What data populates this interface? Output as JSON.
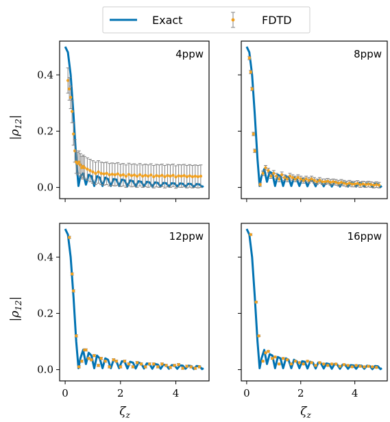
{
  "chart_data": {
    "type": "line",
    "layout": "2x2 grid, shared x and y axes",
    "legend": {
      "placement": "top-center",
      "entries": [
        {
          "name": "Exact",
          "style": "line",
          "color": "#0072b2"
        },
        {
          "name": "FDTD",
          "style": "points with error bars",
          "color": "#f0a020",
          "error_color": "#808080"
        }
      ]
    },
    "xlabel": "ζ",
    "xlabel_sub": "z",
    "ylabel": "|ρ",
    "ylabel_sub": "12",
    "ylabel_close": "|",
    "xlim": [
      -0.2,
      5.2
    ],
    "ylim": [
      -0.04,
      0.52
    ],
    "xticks": [
      0,
      2,
      4
    ],
    "yticks": [
      0.0,
      0.2,
      0.4
    ],
    "grid": false,
    "panels": [
      {
        "label": "4ppw",
        "exact": {
          "x": [
            0.0,
            0.1,
            0.2,
            0.3,
            0.4,
            0.48,
            0.55,
            0.65,
            0.75,
            0.85,
            0.95,
            1.05,
            1.15,
            1.25,
            1.35,
            1.45,
            1.55,
            1.65,
            1.75,
            1.85,
            1.95,
            2.05,
            2.15,
            2.25,
            2.35,
            2.45,
            2.55,
            2.65,
            2.75,
            2.85,
            2.95,
            3.05,
            3.15,
            3.25,
            3.35,
            3.45,
            3.55,
            3.65,
            3.75,
            3.85,
            3.95,
            4.05,
            4.15,
            4.25,
            4.35,
            4.45,
            4.55,
            4.65,
            4.75,
            4.85,
            4.95,
            5.0
          ],
          "y": [
            0.5,
            0.48,
            0.4,
            0.26,
            0.1,
            0.005,
            0.04,
            0.05,
            0.01,
            0.045,
            0.04,
            0.005,
            0.04,
            0.035,
            0.005,
            0.035,
            0.03,
            0.005,
            0.03,
            0.028,
            0.005,
            0.028,
            0.025,
            0.004,
            0.025,
            0.022,
            0.004,
            0.022,
            0.02,
            0.004,
            0.02,
            0.018,
            0.003,
            0.018,
            0.016,
            0.003,
            0.016,
            0.015,
            0.003,
            0.015,
            0.014,
            0.003,
            0.014,
            0.013,
            0.003,
            0.013,
            0.012,
            0.002,
            0.012,
            0.011,
            0.002,
            0.005
          ]
        },
        "fdtd": {
          "x": [
            0.1,
            0.15,
            0.2,
            0.25,
            0.3,
            0.35,
            0.4,
            0.45,
            0.5,
            0.55,
            0.6,
            0.65,
            0.7,
            0.8,
            0.9,
            1.0,
            1.1,
            1.2,
            1.3,
            1.4,
            1.5,
            1.6,
            1.7,
            1.8,
            1.9,
            2.0,
            2.1,
            2.2,
            2.3,
            2.4,
            2.5,
            2.6,
            2.7,
            2.8,
            2.9,
            3.0,
            3.1,
            3.2,
            3.3,
            3.4,
            3.5,
            3.6,
            3.7,
            3.8,
            3.9,
            4.0,
            4.1,
            4.2,
            4.3,
            4.4,
            4.5,
            4.6,
            4.7,
            4.8,
            4.9
          ],
          "y": [
            0.38,
            0.35,
            0.32,
            0.27,
            0.19,
            0.13,
            0.09,
            0.085,
            0.09,
            0.08,
            0.07,
            0.075,
            0.07,
            0.065,
            0.06,
            0.055,
            0.05,
            0.055,
            0.05,
            0.048,
            0.05,
            0.045,
            0.047,
            0.045,
            0.048,
            0.043,
            0.045,
            0.04,
            0.046,
            0.042,
            0.044,
            0.04,
            0.045,
            0.04,
            0.043,
            0.04,
            0.044,
            0.038,
            0.042,
            0.04,
            0.043,
            0.038,
            0.042,
            0.04,
            0.043,
            0.037,
            0.041,
            0.04,
            0.042,
            0.038,
            0.041,
            0.038,
            0.04,
            0.038,
            0.04
          ],
          "err": [
            0.045,
            0.04,
            0.04,
            0.04,
            0.04,
            0.04,
            0.04,
            0.04,
            0.04,
            0.04,
            0.04,
            0.04,
            0.04,
            0.04,
            0.04,
            0.04,
            0.04,
            0.04,
            0.04,
            0.04,
            0.04,
            0.04,
            0.04,
            0.04,
            0.04,
            0.04,
            0.04,
            0.04,
            0.04,
            0.04,
            0.04,
            0.04,
            0.04,
            0.04,
            0.04,
            0.04,
            0.04,
            0.04,
            0.04,
            0.04,
            0.04,
            0.04,
            0.04,
            0.04,
            0.04,
            0.04,
            0.04,
            0.04,
            0.04,
            0.04,
            0.04,
            0.04,
            0.04,
            0.04,
            0.04
          ]
        }
      },
      {
        "label": "8ppw",
        "exact": {
          "x": [
            0.0,
            0.1,
            0.2,
            0.3,
            0.4,
            0.48,
            0.55,
            0.65,
            0.75,
            0.85,
            0.95,
            1.05,
            1.15,
            1.25,
            1.35,
            1.45,
            1.55,
            1.65,
            1.75,
            1.85,
            1.95,
            2.05,
            2.15,
            2.25,
            2.35,
            2.45,
            2.55,
            2.65,
            2.75,
            2.85,
            2.95,
            3.05,
            3.15,
            3.25,
            3.35,
            3.45,
            3.55,
            3.65,
            3.75,
            3.85,
            3.95,
            4.05,
            4.15,
            4.25,
            4.35,
            4.45,
            4.55,
            4.65,
            4.75,
            4.85,
            4.95,
            5.0
          ],
          "y": [
            0.5,
            0.48,
            0.4,
            0.26,
            0.1,
            0.005,
            0.04,
            0.065,
            0.02,
            0.055,
            0.05,
            0.005,
            0.045,
            0.04,
            0.005,
            0.04,
            0.035,
            0.005,
            0.035,
            0.03,
            0.005,
            0.03,
            0.028,
            0.004,
            0.028,
            0.025,
            0.004,
            0.025,
            0.022,
            0.004,
            0.022,
            0.02,
            0.003,
            0.02,
            0.018,
            0.003,
            0.018,
            0.016,
            0.003,
            0.016,
            0.015,
            0.003,
            0.015,
            0.014,
            0.003,
            0.014,
            0.013,
            0.002,
            0.013,
            0.012,
            0.002,
            0.005
          ]
        },
        "fdtd": {
          "x": [
            0.1,
            0.15,
            0.2,
            0.25,
            0.3,
            0.5,
            0.6,
            0.7,
            0.8,
            0.9,
            1.0,
            1.1,
            1.2,
            1.3,
            1.4,
            1.5,
            1.6,
            1.7,
            1.8,
            1.9,
            2.0,
            2.1,
            2.2,
            2.3,
            2.4,
            2.5,
            2.6,
            2.7,
            2.8,
            2.9,
            3.0,
            3.1,
            3.2,
            3.3,
            3.4,
            3.5,
            3.6,
            3.7,
            3.8,
            3.9,
            4.0,
            4.1,
            4.2,
            4.3,
            4.4,
            4.5,
            4.6,
            4.7,
            4.8,
            4.9
          ],
          "y": [
            0.46,
            0.41,
            0.35,
            0.19,
            0.13,
            0.01,
            0.05,
            0.07,
            0.06,
            0.04,
            0.05,
            0.04,
            0.03,
            0.045,
            0.035,
            0.03,
            0.04,
            0.035,
            0.03,
            0.035,
            0.03,
            0.025,
            0.03,
            0.025,
            0.03,
            0.025,
            0.02,
            0.025,
            0.02,
            0.02,
            0.022,
            0.018,
            0.02,
            0.018,
            0.015,
            0.018,
            0.015,
            0.012,
            0.015,
            0.012,
            0.012,
            0.014,
            0.01,
            0.012,
            0.01,
            0.012,
            0.01,
            0.008,
            0.01,
            0.008
          ],
          "err": [
            0.006,
            0.006,
            0.006,
            0.006,
            0.006,
            0.006,
            0.008,
            0.008,
            0.008,
            0.008,
            0.01,
            0.01,
            0.01,
            0.01,
            0.01,
            0.01,
            0.01,
            0.01,
            0.01,
            0.01,
            0.01,
            0.01,
            0.01,
            0.01,
            0.01,
            0.01,
            0.01,
            0.01,
            0.01,
            0.01,
            0.01,
            0.01,
            0.01,
            0.01,
            0.01,
            0.01,
            0.01,
            0.01,
            0.01,
            0.01,
            0.01,
            0.01,
            0.01,
            0.01,
            0.01,
            0.01,
            0.01,
            0.01,
            0.01,
            0.01
          ]
        }
      },
      {
        "label": "12ppw",
        "exact": {
          "x": [
            0.0,
            0.1,
            0.2,
            0.3,
            0.4,
            0.48,
            0.55,
            0.65,
            0.75,
            0.85,
            0.95,
            1.05,
            1.15,
            1.25,
            1.35,
            1.45,
            1.55,
            1.65,
            1.75,
            1.85,
            1.95,
            2.05,
            2.15,
            2.25,
            2.35,
            2.45,
            2.55,
            2.65,
            2.75,
            2.85,
            2.95,
            3.05,
            3.15,
            3.25,
            3.35,
            3.45,
            3.55,
            3.65,
            3.75,
            3.85,
            3.95,
            4.05,
            4.15,
            4.25,
            4.35,
            4.45,
            4.55,
            4.65,
            4.75,
            4.85,
            4.95,
            5.0
          ],
          "y": [
            0.5,
            0.48,
            0.4,
            0.26,
            0.1,
            0.005,
            0.04,
            0.07,
            0.02,
            0.06,
            0.05,
            0.005,
            0.05,
            0.04,
            0.005,
            0.04,
            0.035,
            0.005,
            0.035,
            0.03,
            0.005,
            0.03,
            0.028,
            0.004,
            0.028,
            0.025,
            0.004,
            0.025,
            0.022,
            0.004,
            0.022,
            0.02,
            0.003,
            0.02,
            0.018,
            0.003,
            0.018,
            0.016,
            0.003,
            0.016,
            0.015,
            0.003,
            0.015,
            0.014,
            0.003,
            0.014,
            0.013,
            0.002,
            0.013,
            0.012,
            0.002,
            0.005
          ]
        },
        "fdtd": {
          "x": [
            0.15,
            0.25,
            0.3,
            0.4,
            0.5,
            0.6,
            0.7,
            0.75,
            0.85,
            0.95,
            1.05,
            1.2,
            1.3,
            1.45,
            1.6,
            1.75,
            1.85,
            2.0,
            2.15,
            2.3,
            2.45,
            2.6,
            2.75,
            2.9,
            3.05,
            3.2,
            3.35,
            3.5,
            3.65,
            3.8,
            3.95,
            4.1,
            4.25,
            4.4,
            4.55,
            4.7,
            4.85
          ],
          "y": [
            0.47,
            0.34,
            0.28,
            0.12,
            0.01,
            0.03,
            0.07,
            0.07,
            0.04,
            0.035,
            0.05,
            0.015,
            0.04,
            0.03,
            0.01,
            0.035,
            0.03,
            0.01,
            0.03,
            0.02,
            0.01,
            0.025,
            0.02,
            0.01,
            0.02,
            0.02,
            0.01,
            0.02,
            0.015,
            0.008,
            0.015,
            0.018,
            0.005,
            0.012,
            0.01,
            0.005,
            0.01
          ],
          "err": [
            0.004,
            0.004,
            0.004,
            0.004,
            0.004,
            0.004,
            0.004,
            0.004,
            0.004,
            0.004,
            0.004,
            0.004,
            0.004,
            0.004,
            0.004,
            0.004,
            0.004,
            0.004,
            0.004,
            0.004,
            0.004,
            0.004,
            0.004,
            0.004,
            0.004,
            0.004,
            0.004,
            0.004,
            0.004,
            0.004,
            0.004,
            0.004,
            0.004,
            0.004,
            0.004,
            0.004,
            0.004
          ]
        }
      },
      {
        "label": "16ppw",
        "exact": {
          "x": [
            0.0,
            0.1,
            0.2,
            0.3,
            0.4,
            0.48,
            0.55,
            0.65,
            0.75,
            0.85,
            0.95,
            1.05,
            1.15,
            1.25,
            1.35,
            1.45,
            1.55,
            1.65,
            1.75,
            1.85,
            1.95,
            2.05,
            2.15,
            2.25,
            2.35,
            2.45,
            2.55,
            2.65,
            2.75,
            2.85,
            2.95,
            3.05,
            3.15,
            3.25,
            3.35,
            3.45,
            3.55,
            3.65,
            3.75,
            3.85,
            3.95,
            4.05,
            4.15,
            4.25,
            4.35,
            4.45,
            4.55,
            4.65,
            4.75,
            4.85,
            4.95,
            5.0
          ],
          "y": [
            0.5,
            0.48,
            0.4,
            0.26,
            0.1,
            0.005,
            0.04,
            0.07,
            0.02,
            0.055,
            0.05,
            0.005,
            0.045,
            0.04,
            0.005,
            0.04,
            0.035,
            0.005,
            0.035,
            0.03,
            0.005,
            0.03,
            0.028,
            0.004,
            0.028,
            0.025,
            0.004,
            0.025,
            0.022,
            0.004,
            0.022,
            0.02,
            0.003,
            0.02,
            0.018,
            0.003,
            0.018,
            0.016,
            0.003,
            0.016,
            0.015,
            0.003,
            0.015,
            0.014,
            0.003,
            0.014,
            0.013,
            0.002,
            0.013,
            0.012,
            0.002,
            0.005
          ]
        },
        "fdtd": {
          "x": [
            0.15,
            0.35,
            0.45,
            0.6,
            0.7,
            0.8,
            0.95,
            1.05,
            1.2,
            1.35,
            1.5,
            1.65,
            1.8,
            1.95,
            2.1,
            2.25,
            2.4,
            2.55,
            2.7,
            2.85,
            3.0,
            3.15,
            3.3,
            3.45,
            3.6,
            3.75,
            3.9,
            4.05,
            4.2,
            4.35,
            4.5,
            4.65,
            4.8
          ],
          "y": [
            0.48,
            0.24,
            0.12,
            0.03,
            0.06,
            0.065,
            0.04,
            0.045,
            0.02,
            0.04,
            0.035,
            0.02,
            0.03,
            0.025,
            0.02,
            0.03,
            0.025,
            0.015,
            0.025,
            0.02,
            0.015,
            0.02,
            0.02,
            0.012,
            0.018,
            0.015,
            0.01,
            0.015,
            0.012,
            0.01,
            0.012,
            0.01,
            0.008
          ],
          "err": [
            0.003,
            0.003,
            0.003,
            0.003,
            0.003,
            0.003,
            0.003,
            0.003,
            0.003,
            0.003,
            0.003,
            0.003,
            0.003,
            0.003,
            0.003,
            0.003,
            0.003,
            0.003,
            0.003,
            0.003,
            0.003,
            0.003,
            0.003,
            0.003,
            0.003,
            0.003,
            0.003,
            0.003,
            0.003,
            0.003,
            0.003,
            0.003,
            0.003
          ]
        }
      }
    ]
  }
}
